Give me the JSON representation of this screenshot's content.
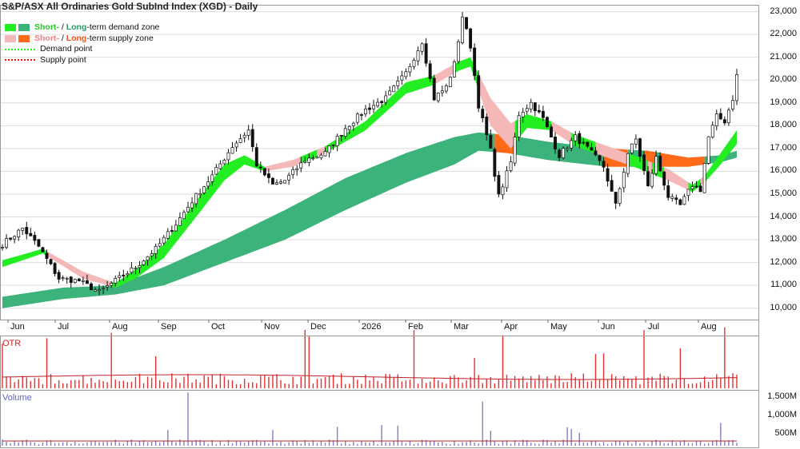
{
  "title": "S&P/ASX All Ordinaries Gold SubInd Index (XGD) - Daily",
  "legend": {
    "demand": {
      "short": "Short-",
      "sep": " / ",
      "long": "Long",
      "rest": "-term demand zone"
    },
    "supply": {
      "short": "Short-",
      "sep": " / ",
      "long": "Long",
      "rest": "-term supply zone"
    },
    "demand_point": "Demand point",
    "supply_point": "Supply point"
  },
  "colors": {
    "short_demand": "#22ee22",
    "long_demand": "#3bb37a",
    "short_supply": "#f5b8b8",
    "long_supply": "#ff6a1a",
    "volume_bar": "#8080c8",
    "otr_bar": "#e83030",
    "avg_line": "#c0202a"
  },
  "chart_data": [
    {
      "type": "candlestick",
      "panel": "price",
      "ylim": [
        9500,
        23300
      ],
      "yticks": [
        "10,000",
        "11,000",
        "12,000",
        "13,000",
        "14,000",
        "15,000",
        "16,000",
        "17,000",
        "18,000",
        "19,000",
        "20,000",
        "21,000",
        "22,000",
        "23,000"
      ],
      "x_labels": [
        "Jun",
        "Jul",
        "Aug",
        "Sep",
        "Oct",
        "Nov",
        "Dec",
        "2026",
        "Feb",
        "Mar",
        "Apr",
        "May",
        "Jun",
        "Jul",
        "Aug"
      ],
      "close_path": [
        [
          0,
          12800
        ],
        [
          5,
          13500
        ],
        [
          9,
          12700
        ],
        [
          14,
          11300
        ],
        [
          19,
          11200
        ],
        [
          24,
          10700
        ],
        [
          28,
          11200
        ],
        [
          33,
          11800
        ],
        [
          38,
          12600
        ],
        [
          43,
          13700
        ],
        [
          47,
          14700
        ],
        [
          52,
          15800
        ],
        [
          57,
          17100
        ],
        [
          61,
          17800
        ],
        [
          63,
          16300
        ],
        [
          67,
          15400
        ],
        [
          70,
          15600
        ],
        [
          75,
          16500
        ],
        [
          80,
          16800
        ],
        [
          85,
          17900
        ],
        [
          90,
          18700
        ],
        [
          95,
          19200
        ],
        [
          100,
          20300
        ],
        [
          104,
          21700
        ],
        [
          107,
          19200
        ],
        [
          110,
          19700
        ],
        [
          112,
          20700
        ],
        [
          114,
          22800
        ],
        [
          116,
          21500
        ],
        [
          118,
          18900
        ],
        [
          121,
          16900
        ],
        [
          123,
          14900
        ],
        [
          126,
          16400
        ],
        [
          128,
          18500
        ],
        [
          131,
          19000
        ],
        [
          134,
          18300
        ],
        [
          138,
          16700
        ],
        [
          142,
          17500
        ],
        [
          145,
          17000
        ],
        [
          149,
          16200
        ],
        [
          152,
          14500
        ],
        [
          155,
          16800
        ],
        [
          157,
          17400
        ],
        [
          160,
          15300
        ],
        [
          162,
          16600
        ],
        [
          165,
          14900
        ],
        [
          168,
          14500
        ],
        [
          171,
          15400
        ],
        [
          173,
          15200
        ],
        [
          175,
          17500
        ],
        [
          177,
          18400
        ],
        [
          179,
          18200
        ],
        [
          181,
          19200
        ],
        [
          182,
          20200
        ]
      ],
      "short_term_zone": [
        [
          0,
          11800,
          12100
        ],
        [
          10,
          12400,
          12600
        ],
        [
          20,
          11300,
          11600
        ],
        [
          28,
          10900,
          11100
        ],
        [
          33,
          11300,
          11700
        ],
        [
          40,
          12200,
          12800
        ],
        [
          48,
          14000,
          14700
        ],
        [
          55,
          15600,
          16300
        ],
        [
          60,
          16300,
          16700
        ],
        [
          65,
          16000,
          16200
        ],
        [
          72,
          16200,
          16500
        ],
        [
          80,
          16800,
          17100
        ],
        [
          90,
          17800,
          18200
        ],
        [
          100,
          19400,
          19900
        ],
        [
          107,
          19800,
          20200
        ],
        [
          113,
          20400,
          20800
        ],
        [
          116,
          20600,
          21000
        ],
        [
          121,
          18000,
          19200
        ],
        [
          126,
          17000,
          18100
        ],
        [
          130,
          17900,
          18500
        ],
        [
          136,
          17800,
          18200
        ],
        [
          142,
          17100,
          17600
        ],
        [
          150,
          16600,
          17100
        ],
        [
          158,
          16100,
          16600
        ],
        [
          165,
          15600,
          16100
        ],
        [
          171,
          15100,
          15400
        ],
        [
          174,
          15500,
          15800
        ],
        [
          178,
          16300,
          16800
        ],
        [
          182,
          17200,
          17800
        ]
      ],
      "long_term_zone": [
        [
          0,
          10000,
          10500
        ],
        [
          15,
          10400,
          10900
        ],
        [
          28,
          10600,
          11000
        ],
        [
          40,
          11000,
          11800
        ],
        [
          55,
          12000,
          13000
        ],
        [
          70,
          13000,
          14300
        ],
        [
          85,
          14300,
          15700
        ],
        [
          100,
          15500,
          16800
        ],
        [
          112,
          16300,
          17500
        ],
        [
          118,
          16900,
          17700
        ],
        [
          125,
          16800,
          17600
        ],
        [
          135,
          16500,
          17300
        ],
        [
          150,
          16200,
          17000
        ],
        [
          160,
          16200,
          16900
        ],
        [
          170,
          16200,
          16600
        ],
        [
          178,
          16400,
          16700
        ],
        [
          182,
          16600,
          16900
        ]
      ]
    },
    {
      "type": "bar",
      "panel": "otr",
      "label": "OTR"
    },
    {
      "type": "bar",
      "panel": "volume",
      "label": "Volume",
      "yticks": [
        "1,500M",
        "1,000M",
        "500M"
      ]
    }
  ]
}
